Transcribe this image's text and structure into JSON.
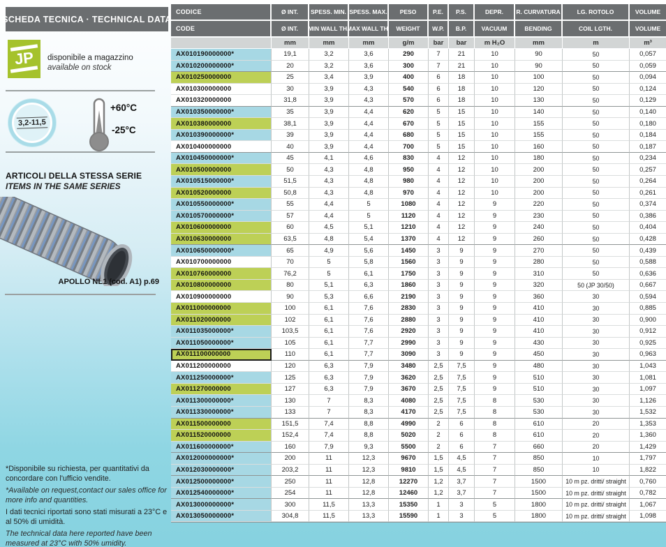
{
  "sidebar": {
    "header": "SCHEDA TECNICA · TECHNICAL DATA",
    "logo_text": "JP",
    "availability_it": "disponibile a magazzino",
    "availability_en": "available on stock",
    "size_badge": "3,2-11,5",
    "temp_max": "+60°C",
    "temp_min": "-25°C",
    "series_title_it": "ARTICOLI DELLA STESSA SERIE",
    "series_title_en": "ITEMS IN THE SAME SERIES",
    "product_caption": "APOLLO NL1  (cod. A1) p.69",
    "notes": [
      {
        "text": "*Disponibile su richiesta, per quantitativi da concordare con l'ufficio vendite.",
        "style": "regular"
      },
      {
        "text": "*Available on request,contact our sales office for more info and quantities.",
        "style": "italic"
      },
      {
        "text": "I dati tecnici riportati sono stati misurati a 23°C e al 50% di umidità.",
        "style": "regular"
      },
      {
        "text": "The technical data here reported have been measured at 23°C with 50% umidity.",
        "style": "italic"
      }
    ]
  },
  "colors": {
    "row_available_stock": "#a7d8e4",
    "row_green": "#bdd056",
    "header_bg": "#6b6e70",
    "units_bg": "#d2d5d5",
    "logo_green": "#a5c22c",
    "page_cyan": "#86d2e0"
  },
  "table": {
    "headers_row1": [
      "CODICE",
      "Ø INT.",
      "SPESS. MIN.",
      "SPESS. MAX.",
      "PESO",
      "P.E.",
      "P.S.",
      "DEPR.",
      "R. CURVATURA",
      "LG. ROTOLO",
      "VOLUME"
    ],
    "headers_row2": [
      "CODE",
      "Ø INT.",
      "MIN WALL TH.",
      "MAX WALL TH.",
      "WEIGHT",
      "W.P.",
      "B.P.",
      "VACUUM",
      "BENDING",
      "COIL LGTH.",
      "VOLUME"
    ],
    "units": [
      "",
      "mm",
      "mm",
      "mm",
      "g/m",
      "bar",
      "bar",
      "m H₂O",
      "mm",
      "m",
      "m³"
    ],
    "rows": [
      {
        "code": "AX010190000000*",
        "bg": "cyan",
        "v": [
          "19,1",
          "3,2",
          "3,6",
          "290",
          "7",
          "21",
          "10",
          "90",
          "50",
          "0,057"
        ]
      },
      {
        "code": "AX010200000000*",
        "bg": "cyan",
        "sep": true,
        "v": [
          "20",
          "3,2",
          "3,6",
          "300",
          "7",
          "21",
          "10",
          "90",
          "50",
          "0,059"
        ]
      },
      {
        "code": "AX010250000000",
        "bg": "green",
        "v": [
          "25",
          "3,4",
          "3,9",
          "400",
          "6",
          "18",
          "10",
          "100",
          "50",
          "0,094"
        ]
      },
      {
        "code": "AX010300000000",
        "bg": "white",
        "v": [
          "30",
          "3,9",
          "4,3",
          "540",
          "6",
          "18",
          "10",
          "120",
          "50",
          "0,124"
        ]
      },
      {
        "code": "AX010320000000",
        "bg": "white",
        "sep": true,
        "v": [
          "31,8",
          "3,9",
          "4,3",
          "570",
          "6",
          "18",
          "10",
          "130",
          "50",
          "0,129"
        ]
      },
      {
        "code": "AX010350000000*",
        "bg": "cyan",
        "v": [
          "35",
          "3,9",
          "4,4",
          "620",
          "5",
          "15",
          "10",
          "140",
          "50",
          "0,140"
        ]
      },
      {
        "code": "AX010380000000",
        "bg": "green",
        "v": [
          "38,1",
          "3,9",
          "4,4",
          "670",
          "5",
          "15",
          "10",
          "155",
          "50",
          "0,180"
        ]
      },
      {
        "code": "AX010390000000*",
        "bg": "cyan",
        "v": [
          "39",
          "3,9",
          "4,4",
          "680",
          "5",
          "15",
          "10",
          "155",
          "50",
          "0,184"
        ]
      },
      {
        "code": "AX010400000000",
        "bg": "white",
        "sep": true,
        "v": [
          "40",
          "3,9",
          "4,4",
          "700",
          "5",
          "15",
          "10",
          "160",
          "50",
          "0,187"
        ]
      },
      {
        "code": "AX010450000000*",
        "bg": "cyan",
        "v": [
          "45",
          "4,1",
          "4,6",
          "830",
          "4",
          "12",
          "10",
          "180",
          "50",
          "0,234"
        ]
      },
      {
        "code": "AX010500000000",
        "bg": "green",
        "v": [
          "50",
          "4,3",
          "4,8",
          "950",
          "4",
          "12",
          "10",
          "200",
          "50",
          "0,257"
        ]
      },
      {
        "code": "AX010515000000*",
        "bg": "cyan",
        "v": [
          "51,5",
          "4,3",
          "4,8",
          "980",
          "4",
          "12",
          "10",
          "200",
          "50",
          "0,264"
        ]
      },
      {
        "code": "AX010520000000",
        "bg": "green",
        "v": [
          "50,8",
          "4,3",
          "4,8",
          "970",
          "4",
          "12",
          "10",
          "200",
          "50",
          "0,261"
        ]
      },
      {
        "code": "AX010550000000*",
        "bg": "cyan",
        "v": [
          "55",
          "4,4",
          "5",
          "1080",
          "4",
          "12",
          "9",
          "220",
          "50",
          "0,374"
        ]
      },
      {
        "code": "AX010570000000*",
        "bg": "cyan",
        "v": [
          "57",
          "4,4",
          "5",
          "1120",
          "4",
          "12",
          "9",
          "230",
          "50",
          "0,386"
        ]
      },
      {
        "code": "AX010600000000",
        "bg": "green",
        "v": [
          "60",
          "4,5",
          "5,1",
          "1210",
          "4",
          "12",
          "9",
          "240",
          "50",
          "0,404"
        ]
      },
      {
        "code": "AX010630000000",
        "bg": "green",
        "sep": true,
        "v": [
          "63,5",
          "4,8",
          "5,4",
          "1370",
          "4",
          "12",
          "9",
          "260",
          "50",
          "0,428"
        ]
      },
      {
        "code": "AX010650000000*",
        "bg": "cyan",
        "v": [
          "65",
          "4,9",
          "5,6",
          "1450",
          "3",
          "9",
          "9",
          "270",
          "50",
          "0,439"
        ]
      },
      {
        "code": "AX010700000000",
        "bg": "white",
        "v": [
          "70",
          "5",
          "5,8",
          "1560",
          "3",
          "9",
          "9",
          "280",
          "50",
          "0,588"
        ]
      },
      {
        "code": "AX010760000000",
        "bg": "green",
        "v": [
          "76,2",
          "5",
          "6,1",
          "1750",
          "3",
          "9",
          "9",
          "310",
          "50",
          "0,636"
        ]
      },
      {
        "code": "AX010800000000",
        "bg": "green",
        "v": [
          "80",
          "5,1",
          "6,3",
          "1860",
          "3",
          "9",
          "9",
          "320",
          "50 (JP 30/50)",
          "0,667"
        ]
      },
      {
        "code": "AX010900000000",
        "bg": "white",
        "v": [
          "90",
          "5,3",
          "6,6",
          "2190",
          "3",
          "9",
          "9",
          "360",
          "30",
          "0,594"
        ]
      },
      {
        "code": "AX011000000000",
        "bg": "green",
        "v": [
          "100",
          "6,1",
          "7,6",
          "2830",
          "3",
          "9",
          "9",
          "410",
          "30",
          "0,885"
        ]
      },
      {
        "code": "AX011020000000",
        "bg": "green",
        "v": [
          "102",
          "6,1",
          "7,6",
          "2880",
          "3",
          "9",
          "9",
          "410",
          "30",
          "0,900"
        ]
      },
      {
        "code": "AX011035000000*",
        "bg": "cyan",
        "v": [
          "103,5",
          "6,1",
          "7,6",
          "2920",
          "3",
          "9",
          "9",
          "410",
          "30",
          "0,912"
        ]
      },
      {
        "code": "AX011050000000*",
        "bg": "cyan",
        "v": [
          "105",
          "6,1",
          "7,7",
          "2990",
          "3",
          "9",
          "9",
          "430",
          "30",
          "0,925"
        ]
      },
      {
        "code": "AX011100000000",
        "bg": "green",
        "selected": true,
        "sep": true,
        "v": [
          "110",
          "6,1",
          "7,7",
          "3090",
          "3",
          "9",
          "9",
          "450",
          "30",
          "0,963"
        ]
      },
      {
        "code": "AX011200000000",
        "bg": "white",
        "v": [
          "120",
          "6,3",
          "7,9",
          "3480",
          "2,5",
          "7,5",
          "9",
          "480",
          "30",
          "1,043"
        ]
      },
      {
        "code": "AX011250000000*",
        "bg": "cyan",
        "v": [
          "125",
          "6,3",
          "7,9",
          "3620",
          "2,5",
          "7,5",
          "9",
          "510",
          "30",
          "1,081"
        ]
      },
      {
        "code": "AX011270000000",
        "bg": "green",
        "v": [
          "127",
          "6,3",
          "7,9",
          "3670",
          "2,5",
          "7,5",
          "9",
          "510",
          "30",
          "1,097"
        ]
      },
      {
        "code": "AX011300000000*",
        "bg": "cyan",
        "v": [
          "130",
          "7",
          "8,3",
          "4080",
          "2,5",
          "7,5",
          "8",
          "530",
          "30",
          "1,126"
        ]
      },
      {
        "code": "AX011330000000*",
        "bg": "cyan",
        "sep": true,
        "v": [
          "133",
          "7",
          "8,3",
          "4170",
          "2,5",
          "7,5",
          "8",
          "530",
          "30",
          "1,532"
        ]
      },
      {
        "code": "AX011500000000",
        "bg": "green",
        "v": [
          "151,5",
          "7,4",
          "8,8",
          "4990",
          "2",
          "6",
          "8",
          "610",
          "20",
          "1,353"
        ]
      },
      {
        "code": "AX011520000000",
        "bg": "green",
        "v": [
          "152,4",
          "7,4",
          "8,8",
          "5020",
          "2",
          "6",
          "8",
          "610",
          "20",
          "1,360"
        ]
      },
      {
        "code": "AX011600000000*",
        "bg": "cyan",
        "sep": true,
        "v": [
          "160",
          "7,9",
          "9,3",
          "5500",
          "2",
          "6",
          "7",
          "660",
          "20",
          "1,429"
        ]
      },
      {
        "code": "AX012000000000*",
        "bg": "cyan",
        "v": [
          "200",
          "11",
          "12,3",
          "9670",
          "1,5",
          "4,5",
          "7",
          "850",
          "10",
          "1,797"
        ]
      },
      {
        "code": "AX012030000000*",
        "bg": "cyan",
        "sep": true,
        "v": [
          "203,2",
          "11",
          "12,3",
          "9810",
          "1,5",
          "4,5",
          "7",
          "850",
          "10",
          "1,822"
        ]
      },
      {
        "code": "AX012500000000*",
        "bg": "cyan",
        "v": [
          "250",
          "11",
          "12,8",
          "12270",
          "1,2",
          "3,7",
          "7",
          "1500",
          "10 m pz. dritti/ straight",
          "0,760"
        ]
      },
      {
        "code": "AX012540000000*",
        "bg": "cyan",
        "sep": true,
        "v": [
          "254",
          "11",
          "12,8",
          "12460",
          "1,2",
          "3,7",
          "7",
          "1500",
          "10 m pz. dritti/ straight",
          "0,782"
        ]
      },
      {
        "code": "AX013000000000*",
        "bg": "cyan",
        "v": [
          "300",
          "11,5",
          "13,3",
          "15350",
          "1",
          "3",
          "5",
          "1800",
          "10 m pz. dritti/ straight",
          "1,067"
        ]
      },
      {
        "code": "AX013050000000*",
        "bg": "cyan",
        "v": [
          "304,8",
          "11,5",
          "13,3",
          "15590",
          "1",
          "3",
          "5",
          "1800",
          "10 m pz. dritti/ straight",
          "1,098"
        ]
      }
    ]
  }
}
